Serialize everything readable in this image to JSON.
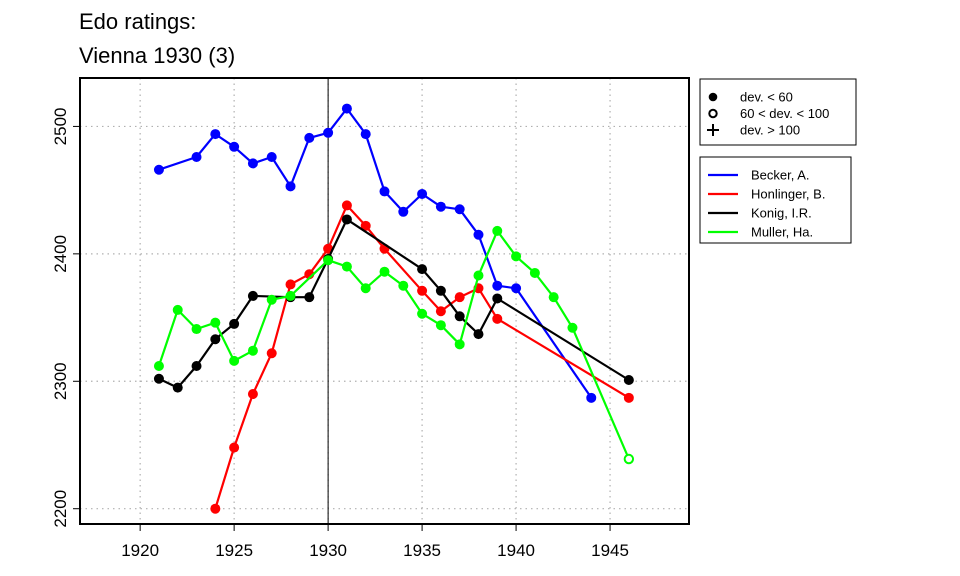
{
  "chart_data": {
    "type": "line",
    "title": "Edo ratings:",
    "subtitle": "Vienna 1930 (3)",
    "xlabel": "",
    "ylabel": "",
    "xlim": [
      1916.8,
      1949.2
    ],
    "ylim": [
      2188,
      2538
    ],
    "x_ticks": [
      1920,
      1925,
      1930,
      1935,
      1940,
      1945
    ],
    "y_ticks": [
      2200,
      2300,
      2400,
      2500
    ],
    "grid": "dotted",
    "reference_line_x": 1930,
    "marker_legend": [
      {
        "symbol": "filled-circle",
        "label": "dev. < 60"
      },
      {
        "symbol": "open-circle",
        "label": "60 < dev. < 100"
      },
      {
        "symbol": "plus",
        "label": "dev. > 100"
      }
    ],
    "series": [
      {
        "name": "Becker, A.",
        "color": "#0000ff",
        "x": [
          1921,
          1923,
          1924,
          1925,
          1926,
          1927,
          1928,
          1929,
          1930,
          1931,
          1932,
          1933,
          1934,
          1935,
          1936,
          1937,
          1938,
          1939,
          1940,
          1944
        ],
        "y": [
          2466,
          2476,
          2494,
          2484,
          2471,
          2476,
          2453,
          2491,
          2495,
          2514,
          2494,
          2449,
          2433,
          2447,
          2437,
          2435,
          2415,
          2375,
          2373,
          2287
        ],
        "markers": [
          "filled",
          "filled",
          "filled",
          "filled",
          "filled",
          "filled",
          "filled",
          "filled",
          "filled",
          "filled",
          "filled",
          "filled",
          "filled",
          "filled",
          "filled",
          "filled",
          "filled",
          "filled",
          "filled",
          "filled"
        ]
      },
      {
        "name": "Honlinger, B.",
        "color": "#ff0000",
        "x": [
          1924,
          1925,
          1926,
          1927,
          1928,
          1929,
          1930,
          1931,
          1932,
          1933,
          1935,
          1936,
          1937,
          1938,
          1939,
          1946
        ],
        "y": [
          2200,
          2248,
          2290,
          2322,
          2376,
          2384,
          2404,
          2438,
          2422,
          2404,
          2371,
          2355,
          2366,
          2373,
          2349,
          2287
        ],
        "markers": [
          "filled",
          "filled",
          "filled",
          "filled",
          "filled",
          "filled",
          "filled",
          "filled",
          "filled",
          "filled",
          "filled",
          "filled",
          "filled",
          "filled",
          "filled",
          "filled"
        ]
      },
      {
        "name": "Konig, I.R.",
        "color": "#000000",
        "x": [
          1921,
          1922,
          1923,
          1924,
          1925,
          1926,
          1928,
          1929,
          1930,
          1931,
          1935,
          1936,
          1937,
          1938,
          1939,
          1946
        ],
        "y": [
          2302,
          2295,
          2312,
          2333,
          2345,
          2367,
          2366,
          2366,
          2396,
          2427,
          2388,
          2371,
          2351,
          2337,
          2365,
          2301
        ],
        "markers": [
          "filled",
          "filled",
          "filled",
          "filled",
          "filled",
          "filled",
          "filled",
          "filled",
          "filled",
          "filled",
          "filled",
          "filled",
          "filled",
          "filled",
          "filled",
          "filled"
        ]
      },
      {
        "name": "Muller, Ha.",
        "color": "#00ff00",
        "x": [
          1921,
          1922,
          1923,
          1924,
          1925,
          1926,
          1927,
          1928,
          1930,
          1931,
          1932,
          1933,
          1934,
          1935,
          1936,
          1937,
          1938,
          1939,
          1940,
          1941,
          1942,
          1943,
          1946
        ],
        "y": [
          2312,
          2356,
          2341,
          2346,
          2316,
          2324,
          2364,
          2367,
          2395,
          2390,
          2373,
          2386,
          2375,
          2353,
          2344,
          2329,
          2383,
          2418,
          2398,
          2385,
          2366,
          2342,
          2239
        ],
        "markers": [
          "filled",
          "filled",
          "filled",
          "filled",
          "filled",
          "filled",
          "filled",
          "filled",
          "filled",
          "filled",
          "filled",
          "filled",
          "filled",
          "filled",
          "filled",
          "filled",
          "filled",
          "filled",
          "filled",
          "filled",
          "filled",
          "filled",
          "open"
        ]
      }
    ]
  }
}
